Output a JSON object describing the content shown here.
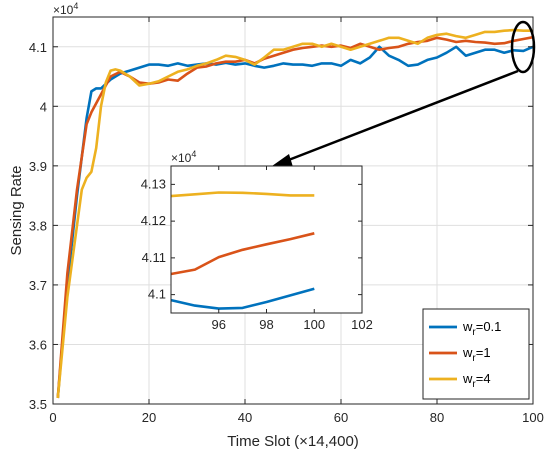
{
  "chart_data": [
    {
      "type": "line",
      "xlabel": "Time Slot (×14,400)",
      "ylabel": "Sensing Rate",
      "y_exponent_label": "×10^4",
      "xlim": [
        0,
        100
      ],
      "ylim": [
        3.5,
        4.15
      ],
      "xticks": [
        0,
        20,
        40,
        60,
        80,
        100
      ],
      "yticks": [
        3.5,
        3.6,
        3.7,
        3.8,
        3.9,
        4,
        4.1
      ],
      "grid": true,
      "legend_position": "bottom-right",
      "series": [
        {
          "name": "wr=0.1",
          "name_base": "w",
          "name_sub": "r",
          "name_suffix": "=0.1",
          "color": "#0072BD",
          "x": [
            1,
            3,
            5,
            7,
            8,
            9,
            10,
            12,
            14,
            16,
            18,
            20,
            22,
            24,
            26,
            28,
            30,
            32,
            34,
            36,
            38,
            40,
            42,
            44,
            46,
            48,
            50,
            52,
            54,
            56,
            58,
            60,
            62,
            64,
            66,
            68,
            70,
            72,
            74,
            76,
            78,
            80,
            82,
            84,
            86,
            88,
            90,
            92,
            94,
            96,
            98,
            100
          ],
          "y": [
            3.51,
            3.7,
            3.85,
            3.98,
            4.025,
            4.03,
            4.03,
            4.045,
            4.055,
            4.06,
            4.065,
            4.07,
            4.07,
            4.068,
            4.072,
            4.068,
            4.07,
            4.072,
            4.07,
            4.073,
            4.07,
            4.072,
            4.068,
            4.065,
            4.068,
            4.072,
            4.07,
            4.07,
            4.068,
            4.072,
            4.072,
            4.068,
            4.078,
            4.072,
            4.082,
            4.1,
            4.085,
            4.078,
            4.068,
            4.07,
            4.078,
            4.082,
            4.09,
            4.1,
            4.085,
            4.09,
            4.095,
            4.095,
            4.09,
            4.094,
            4.093,
            4.1
          ]
        },
        {
          "name": "wr=1",
          "name_base": "w",
          "name_sub": "r",
          "name_suffix": "=1",
          "color": "#D95319",
          "x": [
            1,
            3,
            5,
            7,
            8,
            10,
            12,
            14,
            16,
            18,
            20,
            22,
            24,
            26,
            28,
            30,
            32,
            34,
            36,
            38,
            40,
            42,
            44,
            46,
            48,
            50,
            52,
            54,
            56,
            58,
            60,
            62,
            64,
            66,
            68,
            70,
            72,
            74,
            76,
            78,
            80,
            82,
            84,
            86,
            88,
            90,
            92,
            94,
            96,
            98,
            100
          ],
          "y": [
            3.51,
            3.72,
            3.86,
            3.97,
            3.99,
            4.02,
            4.05,
            4.058,
            4.05,
            4.04,
            4.038,
            4.04,
            4.045,
            4.043,
            4.055,
            4.065,
            4.067,
            4.072,
            4.075,
            4.075,
            4.078,
            4.072,
            4.08,
            4.085,
            4.09,
            4.095,
            4.098,
            4.1,
            4.102,
            4.1,
            4.102,
            4.098,
            4.105,
            4.1,
            4.095,
            4.098,
            4.1,
            4.105,
            4.108,
            4.11,
            4.115,
            4.112,
            4.108,
            4.11,
            4.108,
            4.107,
            4.105,
            4.106,
            4.11,
            4.113,
            4.116
          ]
        },
        {
          "name": "wr=4",
          "name_base": "w",
          "name_sub": "r",
          "name_suffix": "=4",
          "color": "#EDB120",
          "x": [
            1,
            3,
            5,
            6,
            7,
            8,
            9,
            10,
            11,
            12,
            13,
            14,
            16,
            18,
            20,
            22,
            24,
            26,
            28,
            30,
            32,
            34,
            36,
            38,
            40,
            42,
            44,
            46,
            48,
            50,
            52,
            54,
            56,
            58,
            60,
            62,
            64,
            66,
            68,
            70,
            72,
            74,
            76,
            78,
            80,
            82,
            84,
            86,
            88,
            90,
            92,
            94,
            96,
            98,
            100
          ],
          "y": [
            3.51,
            3.68,
            3.8,
            3.86,
            3.88,
            3.89,
            3.93,
            4.0,
            4.04,
            4.06,
            4.062,
            4.06,
            4.05,
            4.035,
            4.038,
            4.042,
            4.05,
            4.058,
            4.062,
            4.068,
            4.072,
            4.078,
            4.085,
            4.083,
            4.078,
            4.07,
            4.082,
            4.095,
            4.095,
            4.1,
            4.105,
            4.105,
            4.1,
            4.105,
            4.1,
            4.095,
            4.1,
            4.105,
            4.11,
            4.115,
            4.115,
            4.11,
            4.105,
            4.115,
            4.12,
            4.122,
            4.118,
            4.115,
            4.12,
            4.125,
            4.125,
            4.127,
            4.128,
            4.127,
            4.127
          ]
        }
      ]
    },
    {
      "type": "line",
      "role": "inset",
      "y_exponent_label": "×10^4",
      "xlim": [
        94,
        102
      ],
      "ylim": [
        4.095,
        4.135
      ],
      "xticks": [
        96,
        98,
        100,
        102
      ],
      "yticks": [
        4.1,
        4.11,
        4.12,
        4.13
      ],
      "grid": false,
      "series": [
        {
          "color": "#0072BD",
          "x": [
            94,
            95,
            96,
            97,
            98,
            99,
            100
          ],
          "y": [
            4.0985,
            4.097,
            4.0962,
            4.0964,
            4.098,
            4.0998,
            4.1016
          ]
        },
        {
          "color": "#D95319",
          "x": [
            94,
            95,
            96,
            97,
            98,
            99,
            100
          ],
          "y": [
            4.1056,
            4.1068,
            4.1102,
            4.1122,
            4.1137,
            4.1151,
            4.1167
          ]
        },
        {
          "color": "#EDB120",
          "x": [
            94,
            95,
            96,
            97,
            98,
            99,
            100
          ],
          "y": [
            4.1268,
            4.1273,
            4.1278,
            4.1277,
            4.1274,
            4.127,
            4.127
          ]
        }
      ]
    }
  ]
}
